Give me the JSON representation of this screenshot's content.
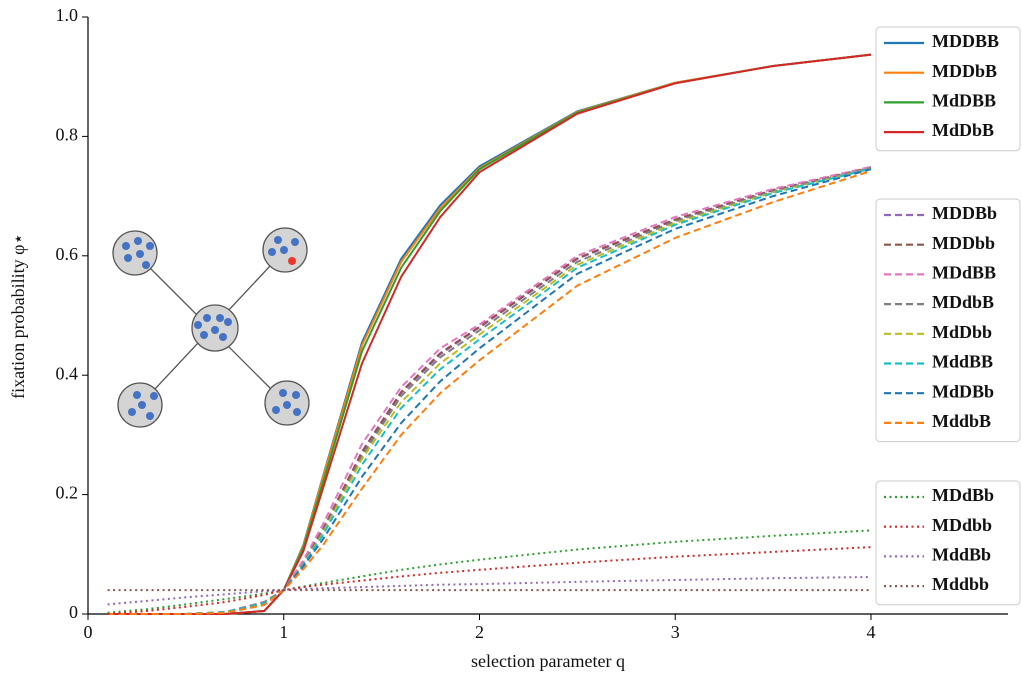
{
  "chart_data": {
    "type": "line",
    "xlabel": "selection parameter q",
    "ylabel": "fixation probability φ⋆",
    "xlim": [
      0,
      4.7
    ],
    "ylim": [
      0,
      1
    ],
    "xticks": [
      0,
      1,
      2,
      3,
      4
    ],
    "yticks": [
      0,
      0.2,
      0.4,
      0.6,
      0.8,
      {
        "value": 1,
        "label": "1.0"
      }
    ],
    "x": [
      0.1,
      0.3,
      0.5,
      0.7,
      0.9,
      1,
      1.1,
      1.2,
      1.4,
      1.6,
      1.8,
      2,
      2.5,
      3,
      3.5,
      4
    ],
    "series": [
      {
        "name": "MDDBB",
        "color": "#1f77b4",
        "style": "solid",
        "values": [
          0,
          0,
          0,
          0,
          0.005,
          0.04,
          0.115,
          0.23,
          0.455,
          0.595,
          0.685,
          0.75,
          0.842,
          0.89,
          0.918,
          0.937
        ]
      },
      {
        "name": "MDDbB",
        "color": "#ff7f0e",
        "style": "solid",
        "values": [
          0,
          0,
          0,
          0,
          0.005,
          0.04,
          0.113,
          0.228,
          0.45,
          0.59,
          0.68,
          0.747,
          0.841,
          0.89,
          0.918,
          0.937
        ]
      },
      {
        "name": "MdDBB",
        "color": "#2ca02c",
        "style": "solid",
        "values": [
          0,
          0,
          0,
          0,
          0.005,
          0.04,
          0.11,
          0.22,
          0.44,
          0.58,
          0.675,
          0.745,
          0.84,
          0.889,
          0.918,
          0.937
        ]
      },
      {
        "name": "MdDbB",
        "color": "#d62728",
        "style": "solid",
        "values": [
          0,
          0,
          0,
          0,
          0.005,
          0.04,
          0.105,
          0.21,
          0.42,
          0.565,
          0.665,
          0.74,
          0.838,
          0.889,
          0.918,
          0.937
        ]
      },
      {
        "name": "MDDBb",
        "color": "#9467bd",
        "style": "dashed",
        "values": [
          0,
          0,
          0,
          0.003,
          0.02,
          0.04,
          0.085,
          0.14,
          0.27,
          0.37,
          0.435,
          0.48,
          0.595,
          0.66,
          0.71,
          0.748
        ]
      },
      {
        "name": "MDDbb",
        "color": "#8c564b",
        "style": "dashed",
        "values": [
          0,
          0,
          0,
          0.003,
          0.02,
          0.04,
          0.086,
          0.142,
          0.272,
          0.372,
          0.437,
          0.481,
          0.596,
          0.661,
          0.71,
          0.748
        ]
      },
      {
        "name": "MDdBB",
        "color": "#e377c2",
        "style": "dashed",
        "values": [
          0,
          0,
          0,
          0.003,
          0.02,
          0.04,
          0.09,
          0.15,
          0.285,
          0.38,
          0.445,
          0.485,
          0.6,
          0.665,
          0.712,
          0.749
        ]
      },
      {
        "name": "MDdbB",
        "color": "#7f7f7f",
        "style": "dashed",
        "values": [
          0,
          0,
          0,
          0.003,
          0.02,
          0.04,
          0.084,
          0.138,
          0.265,
          0.365,
          0.43,
          0.475,
          0.59,
          0.658,
          0.708,
          0.747
        ]
      },
      {
        "name": "MdDbb",
        "color": "#bcbd22",
        "style": "dashed",
        "values": [
          0,
          0,
          0,
          0.003,
          0.018,
          0.04,
          0.083,
          0.135,
          0.26,
          0.355,
          0.42,
          0.468,
          0.585,
          0.655,
          0.706,
          0.746
        ]
      },
      {
        "name": "MddBB",
        "color": "#17becf",
        "style": "dashed",
        "values": [
          0,
          0,
          0,
          0.003,
          0.018,
          0.04,
          0.082,
          0.132,
          0.25,
          0.345,
          0.41,
          0.46,
          0.58,
          0.652,
          0.705,
          0.746
        ]
      },
      {
        "name": "MdDBb",
        "color": "#1f77b4",
        "style": "dashed",
        "values": [
          0,
          0,
          0,
          0.002,
          0.015,
          0.04,
          0.08,
          0.125,
          0.23,
          0.32,
          0.39,
          0.445,
          0.57,
          0.645,
          0.7,
          0.745
        ]
      },
      {
        "name": "MddbB",
        "color": "#ff7f0e",
        "style": "dashed",
        "values": [
          0,
          0,
          0,
          0.002,
          0.015,
          0.04,
          0.075,
          0.115,
          0.21,
          0.3,
          0.37,
          0.425,
          0.55,
          0.63,
          0.69,
          0.742
        ]
      },
      {
        "name": "MDdBb",
        "color": "#2ca02c",
        "style": "dotted",
        "values": [
          0.002,
          0.008,
          0.016,
          0.025,
          0.034,
          0.04,
          0.046,
          0.052,
          0.063,
          0.074,
          0.083,
          0.091,
          0.108,
          0.121,
          0.131,
          0.14
        ]
      },
      {
        "name": "MDdbb",
        "color": "#d62728",
        "style": "dotted",
        "values": [
          0,
          0.005,
          0.012,
          0.02,
          0.032,
          0.04,
          0.045,
          0.049,
          0.056,
          0.063,
          0.069,
          0.074,
          0.086,
          0.096,
          0.104,
          0.112
        ]
      },
      {
        "name": "MddBb",
        "color": "#9467bd",
        "style": "dotted",
        "values": [
          0.016,
          0.022,
          0.028,
          0.033,
          0.038,
          0.04,
          0.042,
          0.043,
          0.045,
          0.047,
          0.049,
          0.05,
          0.054,
          0.057,
          0.06,
          0.062
        ]
      },
      {
        "name": "Mddbb",
        "color": "#8c564b",
        "style": "dotted",
        "values": [
          0.04,
          0.04,
          0.04,
          0.04,
          0.04,
          0.04,
          0.04,
          0.04,
          0.04,
          0.04,
          0.04,
          0.04,
          0.04,
          0.04,
          0.04,
          0.04
        ]
      }
    ]
  }
}
